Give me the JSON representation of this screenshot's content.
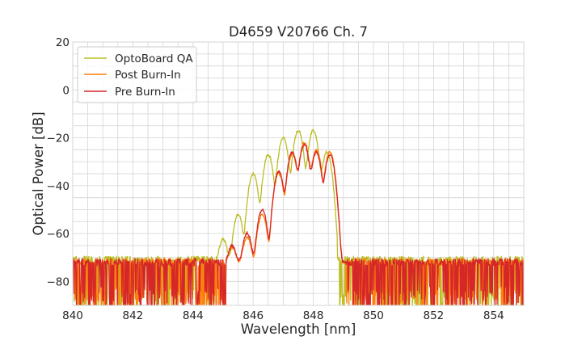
{
  "chart_data": {
    "type": "line",
    "title": "D4659 V20766 Ch. 7",
    "xlabel": "Wavelength [nm]",
    "ylabel": "Optical Power [dB]",
    "xlim": [
      840,
      855
    ],
    "ylim": [
      -90,
      20
    ],
    "x_ticks": [
      "840",
      "842",
      "844",
      "846",
      "848",
      "850",
      "852",
      "854"
    ],
    "y_ticks": [
      "20",
      "0",
      "−20",
      "−40",
      "−60",
      "−80"
    ],
    "x_tick_values": [
      840,
      842,
      844,
      846,
      848,
      850,
      852,
      854
    ],
    "y_tick_values": [
      20,
      0,
      -20,
      -40,
      -60,
      -80
    ],
    "grid": true,
    "legend_position": "top-left",
    "series": [
      {
        "name": "OptoBoard QA",
        "color": "#bcbd22",
        "noise_floor": -71,
        "peaks": [
          {
            "x": 845.0,
            "y": -63
          },
          {
            "x": 845.5,
            "y": -52
          },
          {
            "x": 846.0,
            "y": -35
          },
          {
            "x": 846.5,
            "y": -27
          },
          {
            "x": 847.0,
            "y": -20
          },
          {
            "x": 847.5,
            "y": -17
          },
          {
            "x": 848.0,
            "y": -17
          },
          {
            "x": 848.45,
            "y": -26
          }
        ],
        "band": [
          844.8,
          848.8
        ]
      },
      {
        "name": "Post Burn-In",
        "color": "#ff7f0e",
        "noise_floor": -72,
        "peaks": [
          {
            "x": 845.3,
            "y": -67
          },
          {
            "x": 845.8,
            "y": -62
          },
          {
            "x": 846.3,
            "y": -52
          },
          {
            "x": 846.85,
            "y": -35
          },
          {
            "x": 847.3,
            "y": -27
          },
          {
            "x": 847.7,
            "y": -22
          },
          {
            "x": 848.1,
            "y": -25
          },
          {
            "x": 848.55,
            "y": -26
          }
        ],
        "band": [
          845.1,
          849.1
        ]
      },
      {
        "name": "Pre Burn-In",
        "color": "#d62728",
        "noise_floor": -72,
        "peaks": [
          {
            "x": 845.3,
            "y": -66
          },
          {
            "x": 845.8,
            "y": -60
          },
          {
            "x": 846.3,
            "y": -50
          },
          {
            "x": 846.85,
            "y": -34
          },
          {
            "x": 847.3,
            "y": -26
          },
          {
            "x": 847.7,
            "y": -23
          },
          {
            "x": 848.1,
            "y": -26
          },
          {
            "x": 848.55,
            "y": -27
          }
        ],
        "band": [
          845.1,
          849.1
        ]
      }
    ]
  }
}
